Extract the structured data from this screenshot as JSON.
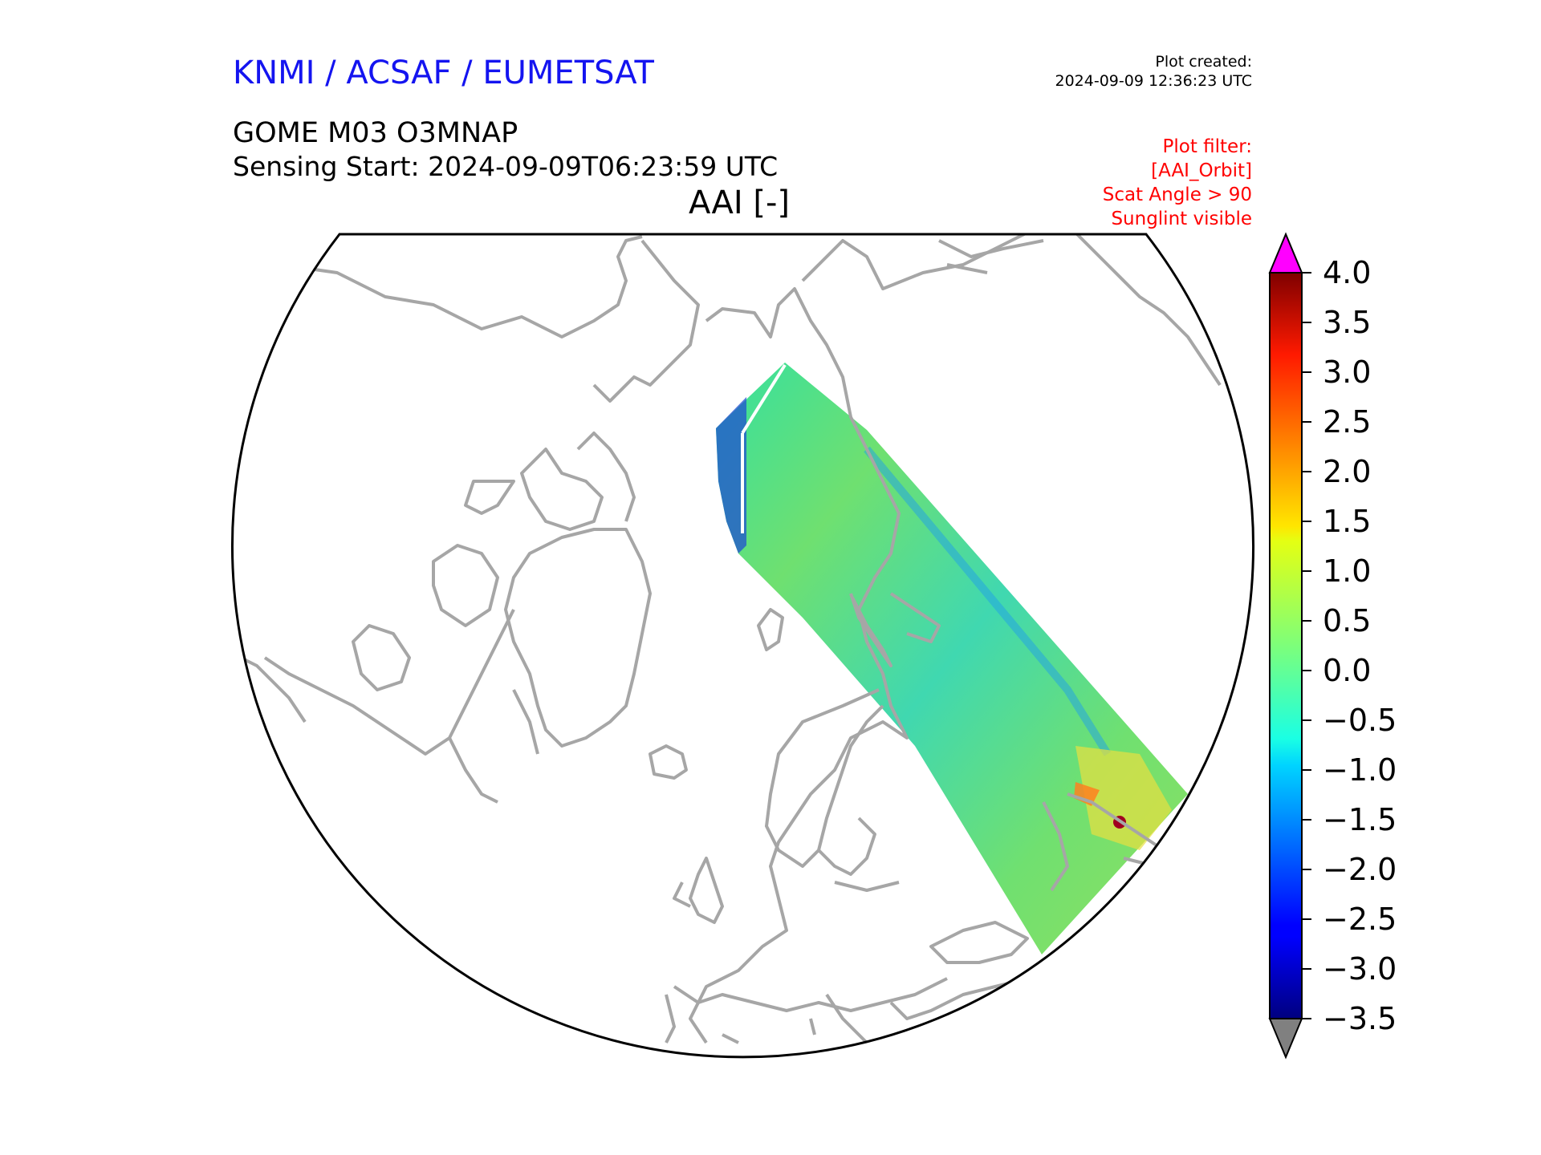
{
  "header": {
    "organizations": "KNMI / ACSAF / EUMETSAT",
    "plot_created_label": "Plot created:",
    "plot_created_time": "2024-09-09 12:36:23 UTC",
    "product": "GOME M03 O3MNAP",
    "sensing_start": "Sensing Start: 2024-09-09T06:23:59 UTC",
    "variable_title": "AAI [-]"
  },
  "plot_filter": {
    "title": "Plot filter:",
    "lines": [
      "[AAI_Orbit]",
      "Scat Angle > 90",
      "Sunglint visible"
    ]
  },
  "colorbar": {
    "min": -3.5,
    "max": 4.0,
    "ticks": [
      "4.0",
      "3.5",
      "3.0",
      "2.5",
      "2.0",
      "1.5",
      "1.0",
      "0.5",
      "0.0",
      "−0.5",
      "−1.0",
      "−1.5",
      "−2.0",
      "−2.5",
      "−3.0",
      "−3.5"
    ],
    "tick_values": [
      4.0,
      3.5,
      3.0,
      2.5,
      2.0,
      1.5,
      1.0,
      0.5,
      0.0,
      -0.5,
      -1.0,
      -1.5,
      -2.0,
      -2.5,
      -3.0,
      -3.5
    ],
    "colormap": "jet",
    "over_color": "#ff00ff",
    "under_color": "#808080"
  },
  "map": {
    "projection": "north-polar-stereographic",
    "coastline_color": "#a6a6a6",
    "swath_mean_aai": 0.1,
    "hotspot_aai": 4.0
  }
}
